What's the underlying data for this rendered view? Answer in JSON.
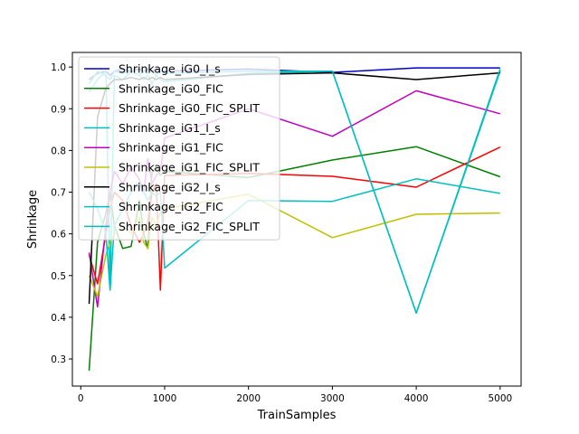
{
  "chart_data": {
    "type": "line",
    "title": "",
    "xlabel": "TrainSamples",
    "ylabel": "Shrinkage",
    "xlim": [
      -100,
      5250
    ],
    "ylim": [
      0.235,
      1.035
    ],
    "xticks": [
      0,
      1000,
      2000,
      3000,
      4000,
      5000
    ],
    "xtick_labels": [
      "0",
      "1000",
      "2000",
      "3000",
      "4000",
      "5000"
    ],
    "yticks": [
      0.3,
      0.4,
      0.5,
      0.6,
      0.7,
      0.8,
      0.9,
      1.0
    ],
    "ytick_labels": [
      "0.3",
      "0.4",
      "0.5",
      "0.6",
      "0.7",
      "0.8",
      "0.9",
      "1.0"
    ],
    "grid": false,
    "legend_position": "top-left",
    "x": [
      100,
      200,
      300,
      350,
      400,
      500,
      600,
      700,
      750,
      800,
      850,
      900,
      950,
      1000,
      2000,
      3000,
      4000,
      5000
    ],
    "series": [
      {
        "name": "Shrinkage_iG0_I_s",
        "color": "#0000cc",
        "values": [
          0.97,
          0.985,
          0.99,
          0.98,
          0.99,
          0.995,
          0.99,
          0.995,
          0.99,
          0.995,
          0.99,
          0.995,
          0.99,
          0.99,
          0.995,
          0.987,
          0.998,
          0.998
        ]
      },
      {
        "name": "Shrinkage_iG0_FIC",
        "color": "#008000",
        "values": [
          0.272,
          0.58,
          0.65,
          0.7,
          0.62,
          0.565,
          0.57,
          0.68,
          0.6,
          0.565,
          0.75,
          0.76,
          0.74,
          0.75,
          0.735,
          0.777,
          0.809,
          0.737
        ]
      },
      {
        "name": "Shrinkage_iG0_FIC_SPLIT",
        "color": "#ff0000",
        "values": [
          0.55,
          0.48,
          0.6,
          0.66,
          0.7,
          0.68,
          0.62,
          0.58,
          0.6,
          0.63,
          0.7,
          0.72,
          0.465,
          0.74,
          0.745,
          0.738,
          0.712,
          0.808
        ]
      },
      {
        "name": "Shrinkage_iG1_I_s",
        "color": "#00bfbf",
        "values": [
          0.94,
          0.97,
          0.99,
          0.465,
          0.98,
          0.97,
          0.99,
          0.98,
          0.97,
          0.98,
          0.96,
          0.98,
          0.97,
          0.965,
          0.985,
          0.99,
          0.41,
          0.99
        ]
      },
      {
        "name": "Shrinkage_iG1_FIC",
        "color": "#bf00bf",
        "values": [
          0.555,
          0.425,
          0.62,
          0.7,
          0.75,
          0.72,
          0.76,
          0.73,
          0.7,
          0.78,
          0.72,
          0.74,
          0.75,
          0.83,
          0.9,
          0.834,
          0.943,
          0.888
        ]
      },
      {
        "name": "Shrinkage_iG1_FIC_SPLIT",
        "color": "#bfbf00",
        "values": [
          0.5,
          0.45,
          0.55,
          0.58,
          0.6,
          0.62,
          0.6,
          0.64,
          0.58,
          0.565,
          0.64,
          0.62,
          0.65,
          0.66,
          0.695,
          0.591,
          0.647,
          0.65
        ]
      },
      {
        "name": "Shrinkage_iG2_I_s",
        "color": "#000000",
        "values": [
          0.432,
          0.88,
          0.95,
          0.96,
          0.97,
          0.97,
          0.975,
          0.97,
          0.975,
          0.97,
          0.975,
          0.97,
          0.975,
          0.97,
          0.982,
          0.986,
          0.97,
          0.986
        ]
      },
      {
        "name": "Shrinkage_iG2_FIC",
        "color": "#00bfbf",
        "values": [
          0.96,
          0.99,
          0.98,
          0.97,
          0.99,
          0.985,
          0.99,
          0.98,
          0.99,
          0.985,
          0.99,
          0.98,
          0.99,
          0.985,
          0.99,
          0.99,
          0.41,
          0.995
        ]
      },
      {
        "name": "Shrinkage_iG2_FIC_SPLIT",
        "color": "#00bfbf",
        "values": [
          0.7,
          0.66,
          0.6,
          0.465,
          0.62,
          0.66,
          0.7,
          0.72,
          0.7,
          0.68,
          0.7,
          0.69,
          0.7,
          0.518,
          0.68,
          0.678,
          0.732,
          0.697
        ]
      }
    ]
  }
}
